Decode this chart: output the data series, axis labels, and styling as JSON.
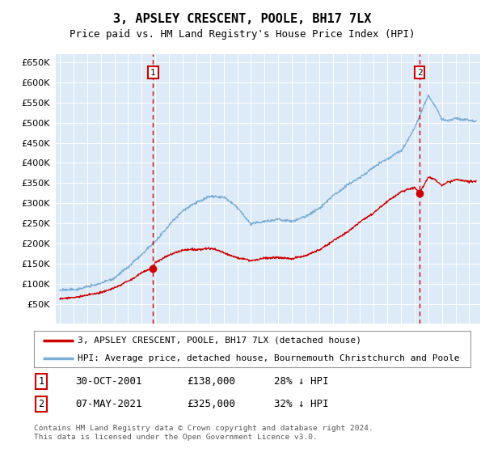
{
  "title": "3, APSLEY CRESCENT, POOLE, BH17 7LX",
  "subtitle": "Price paid vs. HM Land Registry's House Price Index (HPI)",
  "ylim": [
    0,
    670000
  ],
  "yticks": [
    50000,
    100000,
    150000,
    200000,
    250000,
    300000,
    350000,
    400000,
    450000,
    500000,
    550000,
    600000,
    650000
  ],
  "xlim_start": 1994.7,
  "xlim_end": 2025.8,
  "background_color": "#ddeaf7",
  "sale1_x": 2001.83,
  "sale1_y": 138000,
  "sale2_x": 2021.36,
  "sale2_y": 325000,
  "sale1_date": "30-OCT-2001",
  "sale1_price": "£138,000",
  "sale1_hpi": "28% ↓ HPI",
  "sale2_date": "07-MAY-2021",
  "sale2_price": "£325,000",
  "sale2_hpi": "32% ↓ HPI",
  "legend1": "3, APSLEY CRESCENT, POOLE, BH17 7LX (detached house)",
  "legend2": "HPI: Average price, detached house, Bournemouth Christchurch and Poole",
  "footer": "Contains HM Land Registry data © Crown copyright and database right 2024.\nThis data is licensed under the Open Government Licence v3.0.",
  "line_red_color": "#cc0000",
  "line_blue_color": "#7badd4",
  "dashed_color": "#cc0000",
  "box_color": "#ffffff",
  "box_border_color": "#cc0000",
  "hpi_keypoints_x": [
    1995,
    1996,
    1997,
    1998,
    1999,
    2000,
    2001,
    2002,
    2003,
    2004,
    2005,
    2006,
    2007,
    2008,
    2009,
    2010,
    2011,
    2012,
    2013,
    2014,
    2015,
    2016,
    2017,
    2018,
    2019,
    2020,
    2021,
    2021.5,
    2022,
    2022.5,
    2023,
    2023.5,
    2024,
    2025
  ],
  "hpi_keypoints_y": [
    83000,
    88000,
    96000,
    106000,
    120000,
    145000,
    175000,
    210000,
    248000,
    285000,
    305000,
    318000,
    320000,
    295000,
    258000,
    265000,
    268000,
    265000,
    278000,
    300000,
    330000,
    355000,
    375000,
    395000,
    415000,
    435000,
    490000,
    530000,
    570000,
    545000,
    510000,
    505000,
    510000,
    505000
  ],
  "red_keypoints_x": [
    1995,
    1996,
    1997,
    1998,
    1999,
    2000,
    2001,
    2001.83,
    2002,
    2003,
    2004,
    2005,
    2006,
    2007,
    2008,
    2009,
    2010,
    2011,
    2012,
    2013,
    2014,
    2015,
    2016,
    2017,
    2018,
    2019,
    2020,
    2021,
    2021.36,
    2022,
    2022.5,
    2023,
    2023.5,
    2024,
    2025
  ],
  "red_keypoints_y": [
    62000,
    65000,
    70000,
    76000,
    88000,
    105000,
    125000,
    138000,
    152000,
    168000,
    178000,
    182000,
    185000,
    175000,
    163000,
    155000,
    162000,
    165000,
    163000,
    170000,
    185000,
    210000,
    230000,
    255000,
    278000,
    305000,
    330000,
    340000,
    325000,
    365000,
    360000,
    345000,
    355000,
    360000,
    355000
  ]
}
